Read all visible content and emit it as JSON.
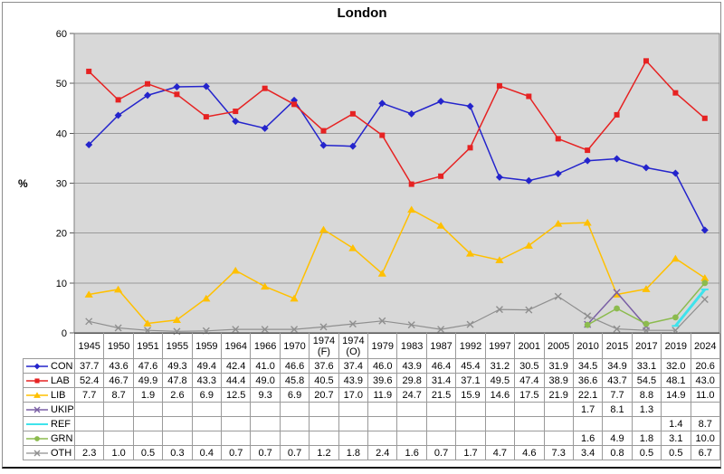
{
  "title": "London",
  "ylabel": "%",
  "chart_data": {
    "type": "line",
    "title": "London",
    "xlabel": "",
    "ylabel": "%",
    "ylim": [
      0,
      60
    ],
    "ytick_interval": 10,
    "grid": "horizontal",
    "legend_position": "data-table-left-column",
    "plot_bg_color": "#d8d8d8",
    "gridline_color": "#9a9a9a",
    "categories": [
      "1945",
      "1950",
      "1951",
      "1955",
      "1959",
      "1964",
      "1966",
      "1970",
      "1974 (F)",
      "1974 (O)",
      "1979",
      "1983",
      "1987",
      "1992",
      "1997",
      "2001",
      "2005",
      "2010",
      "2015",
      "2017",
      "2019",
      "2024"
    ],
    "series": [
      {
        "name": "CON",
        "color": "#2424cc",
        "marker": "diamond",
        "line_width": 1.5,
        "values": [
          37.7,
          43.6,
          47.6,
          49.3,
          49.4,
          42.4,
          41.0,
          46.6,
          37.6,
          37.4,
          46.0,
          43.9,
          46.4,
          45.4,
          31.2,
          30.5,
          31.9,
          34.5,
          34.9,
          33.1,
          32.0,
          20.6
        ]
      },
      {
        "name": "LAB",
        "color": "#e62222",
        "marker": "square",
        "line_width": 1.5,
        "values": [
          52.4,
          46.7,
          49.9,
          47.8,
          43.3,
          44.4,
          49.0,
          45.8,
          40.5,
          43.9,
          39.6,
          29.8,
          31.4,
          37.1,
          49.5,
          47.4,
          38.9,
          36.6,
          43.7,
          54.5,
          48.1,
          43.0
        ]
      },
      {
        "name": "LIB",
        "color": "#ffc000",
        "marker": "triangle",
        "line_width": 1.5,
        "values": [
          7.7,
          8.7,
          1.9,
          2.6,
          6.9,
          12.5,
          9.3,
          6.9,
          20.7,
          17.0,
          11.9,
          24.7,
          21.5,
          15.9,
          14.6,
          17.5,
          21.9,
          22.1,
          7.7,
          8.8,
          14.9,
          11.0
        ]
      },
      {
        "name": "UKIP",
        "color": "#7a5fa5",
        "marker": "x",
        "line_width": 1.5,
        "values": [
          null,
          null,
          null,
          null,
          null,
          null,
          null,
          null,
          null,
          null,
          null,
          null,
          null,
          null,
          null,
          null,
          null,
          1.7,
          8.1,
          1.3,
          null,
          null
        ]
      },
      {
        "name": "REF",
        "color": "#3fe3ec",
        "marker": "dash",
        "line_width": 3,
        "values": [
          null,
          null,
          null,
          null,
          null,
          null,
          null,
          null,
          null,
          null,
          null,
          null,
          null,
          null,
          null,
          null,
          null,
          null,
          null,
          null,
          1.4,
          8.7
        ]
      },
      {
        "name": "GRN",
        "color": "#8cbb4e",
        "marker": "circle",
        "line_width": 1.5,
        "values": [
          null,
          null,
          null,
          null,
          null,
          null,
          null,
          null,
          null,
          null,
          null,
          null,
          null,
          null,
          null,
          null,
          null,
          1.6,
          4.9,
          1.8,
          3.1,
          10.0
        ]
      },
      {
        "name": "OTH",
        "color": "#8f8f8f",
        "marker": "x",
        "line_width": 1.2,
        "values": [
          2.3,
          1.0,
          0.5,
          0.3,
          0.4,
          0.7,
          0.7,
          0.7,
          1.2,
          1.8,
          2.4,
          1.6,
          0.7,
          1.7,
          4.7,
          4.6,
          7.3,
          3.4,
          0.8,
          0.5,
          0.5,
          6.7
        ]
      }
    ]
  }
}
